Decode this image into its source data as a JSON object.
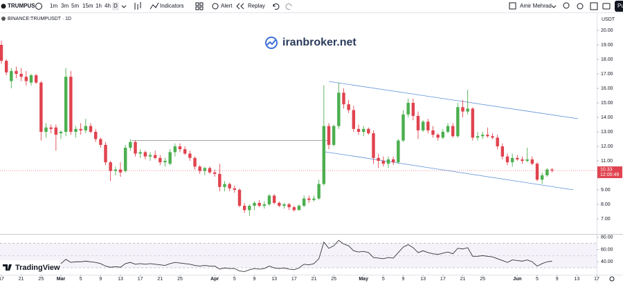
{
  "toolbar": {
    "symbol": "TRUMPUS",
    "intervals": [
      "1m",
      "3m",
      "5m",
      "15m",
      "1h",
      "4h",
      "D"
    ],
    "buttons": [
      "Indicators",
      "Alert",
      "Replay"
    ],
    "user": "Amir Mehrad",
    "publish": "Pu"
  },
  "chart_data": {
    "type": "candlestick",
    "title": "BINANCE:TRUMPUSDT · 1D",
    "watermark": "iranbroker.net",
    "brand": "TradingView",
    "y_label": "USDT",
    "countdown": "12:00:49",
    "colors": {
      "up": "#4caf50",
      "down": "#e0434f"
    },
    "open": [
      19.0,
      17.9,
      16.5,
      17.2,
      17.0,
      16.8,
      16.4,
      16.9,
      16.4,
      13.0,
      13.3,
      13.3,
      12.9,
      13.0,
      16.8,
      13.0,
      13.2,
      13.1,
      13.4,
      13.0,
      12.5,
      12.1,
      10.9,
      10.3,
      10.4,
      10.3,
      11.9,
      12.3,
      11.5,
      11.6,
      11.3,
      11.4,
      11.2,
      10.9,
      10.8,
      11.6,
      12.0,
      11.8,
      11.5,
      11.2,
      10.6,
      10.3,
      10.5,
      10.2,
      10.1,
      9.2,
      9.4,
      9.1,
      9.0,
      7.9,
      7.6,
      7.9,
      8.1,
      7.9,
      8.0,
      8.6,
      8.1,
      7.9,
      8.0,
      7.8,
      7.6,
      7.9,
      8.4,
      8.3,
      8.4,
      9.4,
      13.4,
      12.1,
      13.4,
      15.7,
      14.9,
      14.5,
      13.2,
      13.0,
      13.2,
      12.9,
      11.2,
      11.0,
      10.8,
      11.1,
      10.9,
      12.4,
      14.2,
      15.0,
      14.1,
      13.1,
      13.7,
      13.1,
      12.8,
      12.6,
      13.0,
      13.4,
      12.7,
      14.7,
      14.4,
      14.6,
      12.6,
      12.7,
      12.8,
      12.7,
      12.6,
      12.0,
      11.3,
      10.9,
      11.2,
      11.1,
      11.0,
      11.1,
      10.8,
      9.7,
      10.0,
      10.4
    ],
    "high": [
      19.3,
      18.0,
      17.4,
      17.5,
      17.4,
      17.2,
      17.0,
      17.0,
      16.5,
      13.6,
      13.5,
      13.5,
      13.1,
      17.4,
      17.2,
      13.4,
      13.6,
      13.9,
      13.6,
      13.2,
      12.6,
      12.3,
      11.0,
      10.6,
      10.9,
      12.1,
      12.5,
      12.4,
      11.8,
      11.7,
      11.6,
      11.7,
      11.4,
      11.2,
      11.8,
      12.2,
      12.2,
      12.0,
      11.7,
      11.3,
      10.7,
      10.6,
      10.6,
      10.4,
      10.8,
      9.6,
      9.5,
      9.3,
      9.1,
      8.1,
      8.0,
      8.2,
      8.3,
      8.2,
      8.7,
      8.7,
      8.2,
      8.1,
      8.1,
      7.9,
      8.0,
      8.6,
      8.6,
      8.6,
      9.7,
      16.2,
      13.6,
      13.5,
      16.4,
      16.0,
      15.2,
      14.8,
      13.5,
      13.4,
      13.3,
      13.1,
      11.5,
      11.3,
      11.3,
      11.3,
      12.5,
      14.5,
      15.3,
      15.3,
      14.4,
      13.8,
      13.9,
      13.4,
      12.9,
      13.2,
      13.6,
      13.6,
      15.0,
      15.2,
      15.9,
      14.7,
      13.0,
      13.0,
      13.3,
      12.9,
      12.8,
      12.2,
      11.5,
      11.5,
      11.4,
      11.3,
      11.9,
      11.3,
      10.9,
      10.2,
      10.5,
      10.5
    ],
    "low": [
      17.7,
      16.9,
      16.0,
      16.7,
      16.5,
      16.2,
      16.2,
      16.3,
      12.4,
      12.6,
      12.9,
      11.7,
      12.5,
      12.7,
      12.8,
      12.6,
      12.8,
      12.9,
      12.9,
      12.3,
      11.9,
      10.7,
      9.6,
      10.0,
      9.9,
      10.2,
      11.7,
      11.3,
      11.2,
      11.1,
      11.0,
      11.1,
      10.7,
      10.6,
      10.7,
      11.3,
      11.6,
      11.4,
      11.0,
      10.4,
      10.1,
      10.0,
      10.1,
      9.9,
      8.9,
      8.9,
      8.9,
      8.8,
      7.8,
      7.4,
      7.2,
      7.6,
      7.8,
      7.7,
      7.9,
      8.0,
      7.8,
      7.7,
      7.6,
      7.5,
      7.6,
      7.8,
      8.1,
      8.2,
      8.3,
      9.3,
      11.8,
      12.0,
      13.2,
      14.6,
      14.3,
      13.0,
      12.8,
      12.7,
      12.8,
      10.8,
      10.5,
      10.6,
      10.5,
      10.7,
      10.8,
      12.3,
      14.0,
      13.8,
      12.5,
      13.0,
      12.9,
      12.6,
      12.4,
      12.5,
      12.9,
      12.6,
      12.6,
      14.0,
      14.2,
      12.4,
      12.4,
      12.5,
      12.6,
      12.5,
      11.8,
      11.1,
      10.7,
      10.6,
      11.0,
      10.8,
      10.9,
      10.7,
      9.6,
      9.4,
      9.9,
      10.2
    ],
    "close": [
      17.9,
      17.1,
      17.2,
      17.0,
      16.8,
      16.5,
      16.9,
      16.4,
      13.0,
      13.3,
      13.2,
      12.8,
      13.0,
      16.8,
      13.0,
      13.2,
      13.1,
      13.4,
      13.0,
      12.5,
      12.1,
      10.9,
      10.3,
      10.4,
      10.2,
      11.9,
      12.3,
      11.5,
      11.6,
      11.3,
      11.4,
      11.2,
      10.9,
      11.0,
      11.6,
      12.0,
      11.8,
      11.5,
      11.2,
      10.6,
      10.3,
      10.5,
      10.2,
      10.1,
      9.2,
      9.4,
      9.1,
      9.0,
      7.9,
      7.6,
      7.9,
      8.1,
      7.9,
      8.0,
      8.6,
      8.1,
      7.9,
      8.0,
      7.8,
      7.6,
      7.9,
      8.4,
      8.3,
      8.4,
      9.4,
      13.4,
      12.1,
      13.4,
      15.7,
      14.9,
      14.5,
      13.2,
      13.0,
      13.2,
      12.9,
      11.2,
      11.0,
      10.8,
      11.1,
      10.9,
      12.4,
      14.2,
      15.0,
      14.1,
      13.1,
      13.7,
      13.1,
      12.8,
      12.6,
      13.0,
      13.4,
      12.7,
      14.7,
      14.4,
      14.6,
      12.6,
      12.7,
      12.8,
      12.7,
      12.6,
      12.0,
      11.3,
      10.9,
      11.2,
      11.1,
      11.0,
      11.1,
      10.8,
      9.7,
      10.0,
      10.4,
      10.33
    ],
    "xlim": [
      0,
      120
    ],
    "xticks": [
      {
        "value": 0,
        "label": "17"
      },
      {
        "value": 4,
        "label": "21"
      },
      {
        "value": 8,
        "label": "25"
      },
      {
        "value": 12,
        "label": "Mar"
      },
      {
        "value": 16,
        "label": "5"
      },
      {
        "value": 20,
        "label": "9"
      },
      {
        "value": 24,
        "label": "13"
      },
      {
        "value": 28,
        "label": "17"
      },
      {
        "value": 32,
        "label": "21"
      },
      {
        "value": 36,
        "label": "25"
      },
      {
        "value": 43,
        "label": "Apr"
      },
      {
        "value": 47,
        "label": "5"
      },
      {
        "value": 51,
        "label": "9"
      },
      {
        "value": 55,
        "label": "13"
      },
      {
        "value": 59,
        "label": "17"
      },
      {
        "value": 63,
        "label": "21"
      },
      {
        "value": 67,
        "label": "25"
      },
      {
        "value": 73,
        "label": "May"
      },
      {
        "value": 77,
        "label": "5"
      },
      {
        "value": 81,
        "label": "9"
      },
      {
        "value": 85,
        "label": "13"
      },
      {
        "value": 89,
        "label": "17"
      },
      {
        "value": 93,
        "label": "21"
      },
      {
        "value": 97,
        "label": "25"
      },
      {
        "value": 104,
        "label": "Jun"
      },
      {
        "value": 108,
        "label": "5"
      },
      {
        "value": 112,
        "label": "9"
      },
      {
        "value": 116,
        "label": "13"
      },
      {
        "value": 120,
        "label": "17"
      }
    ],
    "ylim": [
      6,
      21
    ],
    "yticks": [
      {
        "value": 20,
        "label": "20.00"
      },
      {
        "value": 19,
        "label": "19.00"
      },
      {
        "value": 18,
        "label": "18.00"
      },
      {
        "value": 17,
        "label": "17.00"
      },
      {
        "value": 16,
        "label": "16.00"
      },
      {
        "value": 15,
        "label": "15.00"
      },
      {
        "value": 14,
        "label": "14.00"
      },
      {
        "value": 13,
        "label": "13.00"
      },
      {
        "value": 12,
        "label": "12.00"
      },
      {
        "value": 11,
        "label": "11.00"
      },
      {
        "value": 9,
        "label": "9.00"
      },
      {
        "value": 8,
        "label": "8.00"
      },
      {
        "value": 7,
        "label": "7.00"
      }
    ],
    "indicator": {
      "type": "line",
      "color": "#333333",
      "values": [
        null,
        null,
        null,
        null,
        null,
        null,
        null,
        null,
        null,
        null,
        null,
        null,
        37,
        44,
        39,
        40,
        40,
        41,
        40,
        39,
        37,
        33,
        31,
        32,
        31,
        37,
        39,
        36,
        37,
        36,
        37,
        36,
        35,
        34,
        37,
        39,
        38,
        37,
        36,
        34,
        33,
        34,
        33,
        33,
        28,
        30,
        29,
        29,
        25,
        24,
        27,
        29,
        28,
        29,
        33,
        30,
        29,
        30,
        28,
        27,
        30,
        36,
        35,
        37,
        45,
        72,
        62,
        66,
        75,
        69,
        66,
        58,
        56,
        57,
        55,
        47,
        46,
        45,
        47,
        46,
        55,
        64,
        68,
        63,
        55,
        58,
        55,
        53,
        52,
        54,
        56,
        53,
        62,
        61,
        63,
        49,
        49,
        50,
        49,
        48,
        45,
        42,
        39,
        43,
        42,
        41,
        43,
        40,
        33,
        37,
        40,
        41
      ],
      "ylim": [
        20,
        82
      ],
      "yticks": [
        {
          "value": 80,
          "label": "80.00"
        },
        {
          "value": 60,
          "label": "60.00"
        },
        {
          "value": 40,
          "label": "40.00"
        }
      ]
    }
  }
}
